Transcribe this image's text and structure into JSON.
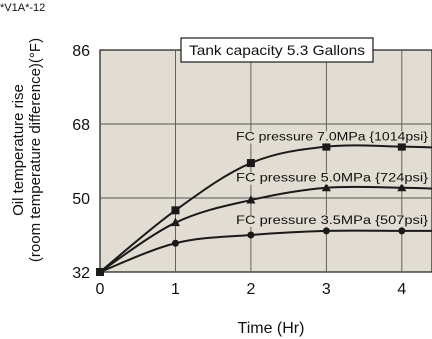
{
  "figure_code": "*V1A*-12",
  "chart_data": {
    "type": "line",
    "title": "Tank capacity  5.3 Gallons",
    "xlabel": "Time (Hr)",
    "ylabel": "Oil temperature rise\n(room temperature difference)(°F)",
    "xlim": [
      0,
      4.4
    ],
    "ylim": [
      32,
      86
    ],
    "xticks": [
      0,
      1,
      2,
      3,
      4
    ],
    "xtick_labels": [
      "0",
      "1",
      "2",
      "3",
      "4"
    ],
    "yticks": [
      32,
      50,
      68,
      86
    ],
    "ytick_labels": [
      "32",
      "50",
      "68",
      "86"
    ],
    "grid": true,
    "background_color": "#e2ddd3",
    "line_color": "#1a1a1a",
    "series": [
      {
        "name": "FC pressure  7.0MPa {1014psi}",
        "marker": "square",
        "x": [
          0,
          1,
          2,
          3,
          4
        ],
        "y": [
          32,
          47,
          58.5,
          62.5,
          62.5
        ],
        "curve_end_y": 62.3
      },
      {
        "name": "FC pressure  5.0MPa {724psi}",
        "marker": "triangle",
        "x": [
          0,
          1,
          2,
          3,
          4
        ],
        "y": [
          32,
          44,
          49.5,
          52.5,
          52.5
        ],
        "curve_end_y": 52.3
      },
      {
        "name": "FC pressure  3.5MPa {507psi}",
        "marker": "circle",
        "x": [
          0,
          1,
          2,
          3,
          4
        ],
        "y": [
          32,
          39,
          41,
          42,
          42
        ],
        "curve_end_y": 42
      }
    ]
  }
}
